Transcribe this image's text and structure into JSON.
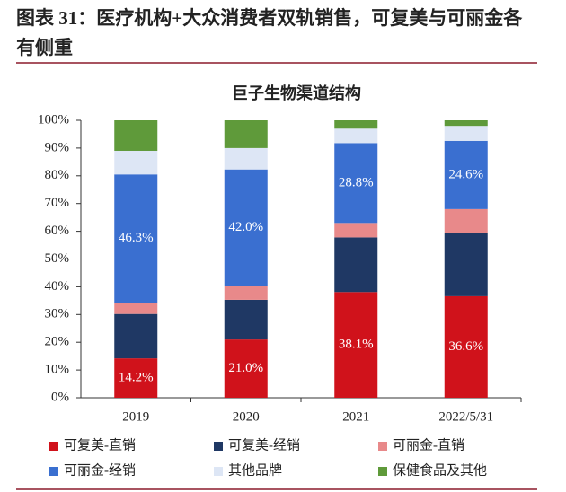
{
  "header": {
    "title": "图表 31：医疗机构+大众消费者双轨销售，可复美与可丽金各有侧重"
  },
  "chart_data": {
    "type": "stacked_bar",
    "title": "巨子生物渠道结构",
    "categories": [
      "2019",
      "2020",
      "2021",
      "2022/5/31"
    ],
    "series": [
      {
        "name": "可复美-直销",
        "color": "#d0121b",
        "values": [
          14.2,
          21.0,
          38.1,
          36.6
        ],
        "value_labels": [
          "14.2%",
          "21.0%",
          "38.1%",
          "36.6%"
        ]
      },
      {
        "name": "可复美-经销",
        "color": "#1f3864",
        "values": [
          16,
          14.3,
          19.7,
          22.8
        ]
      },
      {
        "name": "可丽金-直销",
        "color": "#e8898a",
        "values": [
          4,
          5,
          5.2,
          8.6
        ]
      },
      {
        "name": "可丽金-经销",
        "color": "#3a6fd0",
        "values": [
          46.3,
          42.0,
          28.8,
          24.6
        ],
        "value_labels": [
          "46.3%",
          "42.0%",
          "28.8%",
          "24.6%"
        ]
      },
      {
        "name": "其他品牌",
        "color": "#dde6f5",
        "values": [
          8.5,
          7.7,
          5.2,
          5.4
        ]
      },
      {
        "name": "保健食品及其他",
        "color": "#5f9a3a",
        "values": [
          11,
          10,
          3,
          2
        ]
      }
    ],
    "ylim": [
      0,
      100
    ],
    "yticks": [
      {
        "value": 0,
        "label": "0%"
      },
      {
        "value": 10,
        "label": "10%"
      },
      {
        "value": 20,
        "label": "20%"
      },
      {
        "value": 30,
        "label": "30%"
      },
      {
        "value": 40,
        "label": "40%"
      },
      {
        "value": 50,
        "label": "50%"
      },
      {
        "value": 60,
        "label": "60%"
      },
      {
        "value": 70,
        "label": "70%"
      },
      {
        "value": 80,
        "label": "80%"
      },
      {
        "value": 90,
        "label": "90%"
      },
      {
        "value": 100,
        "label": "100%"
      }
    ]
  }
}
